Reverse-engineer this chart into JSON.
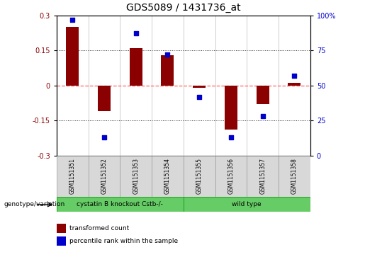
{
  "title": "GDS5089 / 1431736_at",
  "samples": [
    "GSM1151351",
    "GSM1151352",
    "GSM1151353",
    "GSM1151354",
    "GSM1151355",
    "GSM1151356",
    "GSM1151357",
    "GSM1151358"
  ],
  "transformed_count": [
    0.25,
    -0.11,
    0.16,
    0.13,
    -0.01,
    -0.19,
    -0.08,
    0.01
  ],
  "percentile_rank": [
    97,
    13,
    87,
    72,
    42,
    13,
    28,
    57
  ],
  "ylim_left": [
    -0.3,
    0.3
  ],
  "ylim_right": [
    0,
    100
  ],
  "yticks_left": [
    -0.3,
    -0.15,
    0,
    0.15,
    0.3
  ],
  "yticks_right": [
    0,
    25,
    50,
    75,
    100
  ],
  "bar_color": "#8B0000",
  "scatter_color": "#0000CD",
  "hline_color": "#FF6666",
  "dotted_color": "#333333",
  "group1_label": "cystatin B knockout Cstb-/-",
  "group2_label": "wild type",
  "group1_indices": [
    0,
    1,
    2,
    3
  ],
  "group2_indices": [
    4,
    5,
    6,
    7
  ],
  "group1_color": "#66CC66",
  "group2_color": "#66CC66",
  "genotype_label": "genotype/variation",
  "legend_bar_label": "transformed count",
  "legend_scatter_label": "percentile rank within the sample",
  "bar_width": 0.4,
  "title_fontsize": 10,
  "tick_fontsize": 7,
  "label_fontsize": 7.5,
  "ax_bg_color": "#D8D8D8",
  "sample_box_border": "#999999",
  "group_border_color": "#22AA22"
}
